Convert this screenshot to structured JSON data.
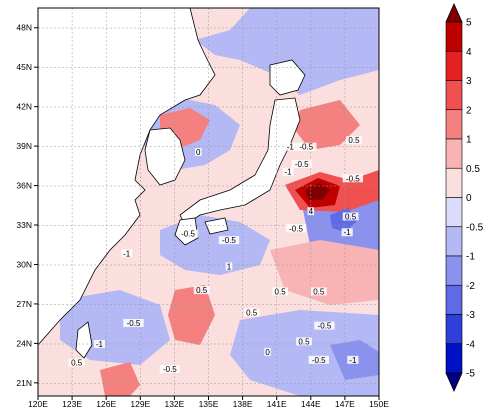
{
  "map": {
    "lon_labels": [
      "120E",
      "123E",
      "126E",
      "129E",
      "132E",
      "135E",
      "138E",
      "141E",
      "144E",
      "147E",
      "150E"
    ],
    "lat_labels": [
      "48N",
      "45N",
      "42N",
      "39N",
      "36N",
      "33N",
      "30N",
      "27N",
      "24N",
      "21N"
    ],
    "contour_labels": [
      {
        "text": "0.5",
        "lon": 147.8,
        "lat": 39.3
      },
      {
        "text": "-1",
        "lon": 142.2,
        "lat": 38.8
      },
      {
        "text": "-0.5",
        "lon": 143.6,
        "lat": 38.8
      },
      {
        "text": "0",
        "lon": 134.1,
        "lat": 38.4
      },
      {
        "text": "-0.5",
        "lon": 143.2,
        "lat": 37.5
      },
      {
        "text": "-1",
        "lon": 142.0,
        "lat": 36.9
      },
      {
        "text": "-0.5",
        "lon": 147.7,
        "lat": 36.4
      },
      {
        "text": "4",
        "lon": 144.0,
        "lat": 33.9
      },
      {
        "text": "0.5",
        "lon": 147.5,
        "lat": 33.5
      },
      {
        "text": "-0.5",
        "lon": 133.2,
        "lat": 32.2
      },
      {
        "text": "-0.5",
        "lon": 142.7,
        "lat": 32.6
      },
      {
        "text": "-1",
        "lon": 147.2,
        "lat": 32.3
      },
      {
        "text": "-1",
        "lon": 127.8,
        "lat": 30.7
      },
      {
        "text": "-0.5",
        "lon": 136.8,
        "lat": 31.7
      },
      {
        "text": "1",
        "lon": 136.8,
        "lat": 29.7
      },
      {
        "text": "0.5",
        "lon": 134.4,
        "lat": 27.9
      },
      {
        "text": "0.5",
        "lon": 141.3,
        "lat": 27.8
      },
      {
        "text": "0.5",
        "lon": 144.7,
        "lat": 27.8
      },
      {
        "text": "0.5",
        "lon": 138.8,
        "lat": 26.2
      },
      {
        "text": "-0.5",
        "lon": 128.4,
        "lat": 25.4
      },
      {
        "text": "-0.5",
        "lon": 145.2,
        "lat": 25.2
      },
      {
        "text": "-1",
        "lon": 125.4,
        "lat": 23.8
      },
      {
        "text": "0.5",
        "lon": 143.4,
        "lat": 24.0
      },
      {
        "text": "0",
        "lon": 140.2,
        "lat": 23.2
      },
      {
        "text": "0.5",
        "lon": 123.4,
        "lat": 22.4
      },
      {
        "text": "-0.5",
        "lon": 131.6,
        "lat": 21.9
      },
      {
        "text": "-0.5",
        "lon": 144.7,
        "lat": 22.6
      },
      {
        "text": "-1",
        "lon": 147.7,
        "lat": 22.6
      }
    ]
  },
  "colorbar": {
    "ticks": [
      "5",
      "4",
      "3",
      "2",
      "1",
      "0.5",
      "0",
      "-0.5",
      "-1",
      "-2",
      "-3",
      "-4",
      "-5"
    ],
    "colors": [
      "#7f0000",
      "#bf0000",
      "#e52020",
      "#f05050",
      "#f48080",
      "#f8b4b4",
      "#fbdede",
      "#dadcfa",
      "#b4b8f4",
      "#8a92ee",
      "#5e6ae6",
      "#2f40da",
      "#0010c8",
      "#000080"
    ]
  },
  "colors": {
    "land": "#ffffff",
    "ocean_neutral": "#fbdede",
    "coast": "#000000"
  }
}
